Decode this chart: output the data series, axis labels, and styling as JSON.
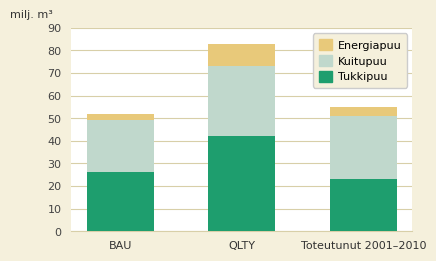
{
  "categories": [
    "BAU",
    "QLTY",
    "Toteutunut 2001–2010"
  ],
  "tukkipuu": [
    26,
    42,
    23
  ],
  "kuitupuu": [
    23,
    31,
    28
  ],
  "energiapuu": [
    3,
    10,
    4
  ],
  "color_tukkipuu": "#1e9e6e",
  "color_kuitupuu": "#c0d8cc",
  "color_energiapuu": "#e8c97a",
  "title_label": "milj. m³",
  "ylim": [
    0,
    90
  ],
  "yticks": [
    0,
    10,
    20,
    30,
    40,
    50,
    60,
    70,
    80,
    90
  ],
  "outer_background": "#f5f0dc",
  "plot_background": "#ffffff",
  "grid_color": "#d8cfa8",
  "bar_width": 0.55,
  "tick_fontsize": 8,
  "legend_fontsize": 8
}
